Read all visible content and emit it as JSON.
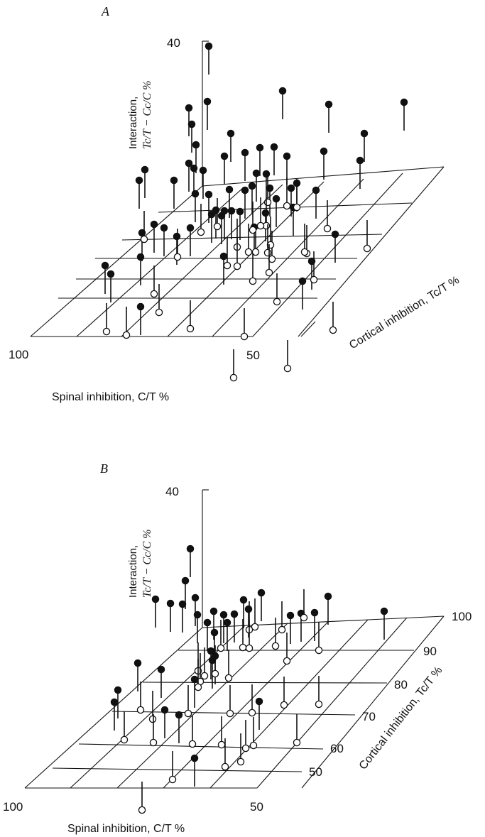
{
  "chart_data": [
    {
      "panel": "A",
      "type": "scatter3d",
      "zlabel_line1": "Interaction,",
      "zlabel_line2": "Tc/T − Cc/C %",
      "xlabel": "Spinal inhibition, C/T %",
      "ylabel": "Cortical inhibition, Tc/T %",
      "z_tick": "40",
      "x_ticks": [
        "100",
        "50"
      ],
      "series": [
        {
          "marker": "filled",
          "points": [
            [
              266,
              152
            ],
            [
              292,
              143
            ],
            [
              294,
              65
            ],
            [
              270,
              175
            ],
            [
              276,
              204
            ],
            [
              273,
              237
            ],
            [
              286,
              240
            ],
            [
              266,
              230
            ],
            [
              325,
              188
            ],
            [
              316,
              220
            ],
            [
              345,
              215
            ],
            [
              366,
              208
            ],
            [
              386,
              207
            ],
            [
              404,
              220
            ],
            [
              398,
              128
            ],
            [
              463,
              147
            ],
            [
              513,
              188
            ],
            [
              569,
              144
            ],
            [
              456,
              213
            ],
            [
              507,
              226
            ],
            [
              204,
              239
            ],
            [
              196,
              254
            ],
            [
              245,
              254
            ],
            [
              294,
              274
            ],
            [
              275,
              273
            ],
            [
              323,
              267
            ],
            [
              345,
              268
            ],
            [
              361,
              244
            ],
            [
              375,
              245
            ],
            [
              380,
              265
            ],
            [
              355,
              262
            ],
            [
              389,
              280
            ],
            [
              410,
              265
            ],
            [
              418,
              258
            ],
            [
              413,
              292
            ],
            [
              445,
              268
            ],
            [
              304,
              296
            ],
            [
              316,
              297
            ],
            [
              326,
              297
            ],
            [
              338,
              298
            ],
            [
              312,
              304
            ],
            [
              298,
              302
            ],
            [
              268,
              321
            ],
            [
              217,
              316
            ],
            [
              231,
              321
            ],
            [
              200,
              328
            ],
            [
              249,
              333
            ],
            [
              358,
              320
            ],
            [
              374,
              300
            ],
            [
              472,
              330
            ],
            [
              315,
              361
            ],
            [
              148,
              374
            ],
            [
              156,
              386
            ],
            [
              198,
              362
            ],
            [
              198,
              432
            ],
            [
              439,
              368
            ],
            [
              426,
              396
            ]
          ]
        },
        {
          "marker": "open",
          "points": [
            [
              377,
              285
            ],
            [
              404,
              290
            ],
            [
              418,
              292
            ],
            [
              375,
              318
            ],
            [
              367,
              318
            ],
            [
              461,
              322
            ],
            [
              517,
              350
            ],
            [
              203,
              337
            ],
            [
              250,
              362
            ],
            [
              283,
              327
            ],
            [
              306,
              319
            ],
            [
              334,
              348
            ],
            [
              350,
              355
            ],
            [
              360,
              355
            ],
            [
              383,
              365
            ],
            [
              356,
              324
            ],
            [
              432,
              357
            ],
            [
              429,
              355
            ],
            [
              381,
              345
            ],
            [
              377,
              356
            ],
            [
              334,
              375
            ],
            [
              320,
              374
            ],
            [
              356,
              396
            ],
            [
              379,
              384
            ],
            [
              442,
              394
            ],
            [
              217,
              414
            ],
            [
              224,
              440
            ],
            [
              268,
              463
            ],
            [
              150,
              467
            ],
            [
              178,
              472
            ],
            [
              344,
              474
            ],
            [
              390,
              425
            ],
            [
              469,
              465
            ],
            [
              329,
              532
            ],
            [
              405,
              519
            ]
          ]
        }
      ]
    },
    {
      "panel": "B",
      "type": "scatter3d",
      "zlabel_line1": "Interaction,",
      "zlabel_line2": "Tc/T − Cc/C %",
      "xlabel": "Spinal inhibition, C/T %",
      "ylabel": "Cortical inhibition, Tc/T %",
      "z_tick": "40",
      "x_ticks": [
        "100",
        "50"
      ],
      "y_ticks": [
        "100",
        "90",
        "80",
        "70",
        "60",
        "50"
      ],
      "series": [
        {
          "marker": "filled",
          "points": [
            [
              268,
              773
            ],
            [
              261,
              818
            ],
            [
              219,
              844
            ],
            [
              240,
              850
            ],
            [
              257,
              851
            ],
            [
              275,
              842
            ],
            [
              278,
              866
            ],
            [
              292,
              877
            ],
            [
              301,
              861
            ],
            [
              315,
              866
            ],
            [
              320,
              877
            ],
            [
              330,
              865
            ],
            [
              343,
              845
            ],
            [
              368,
              835
            ],
            [
              350,
              858
            ],
            [
              409,
              867
            ],
            [
              424,
              864
            ],
            [
              443,
              863
            ],
            [
              462,
              840
            ],
            [
              541,
              861
            ],
            [
              302,
              891
            ],
            [
              297,
              917
            ],
            [
              303,
              924
            ],
            [
              299,
              930
            ],
            [
              194,
              934
            ],
            [
              227,
              943
            ],
            [
              274,
              957
            ],
            [
              166,
              972
            ],
            [
              161,
              989
            ],
            [
              232,
              1000
            ],
            [
              252,
              1007
            ],
            [
              365,
              988
            ],
            [
              274,
              1068
            ]
          ]
        },
        {
          "marker": "open",
          "points": [
            [
              359,
              883
            ],
            [
              351,
              887
            ],
            [
              428,
              870
            ],
            [
              397,
              887
            ],
            [
              311,
              913
            ],
            [
              342,
              912
            ],
            [
              351,
              913
            ],
            [
              279,
              945
            ],
            [
              288,
              952
            ],
            [
              303,
              949
            ],
            [
              282,
              960
            ],
            [
              388,
              910
            ],
            [
              404,
              931
            ],
            [
              449,
              916
            ],
            [
              322,
              955
            ],
            [
              279,
              968
            ],
            [
              198,
              1000
            ],
            [
              215,
              1013
            ],
            [
              265,
              1005
            ],
            [
              324,
              1005
            ],
            [
              355,
              1004
            ],
            [
              400,
              993
            ],
            [
              449,
              992
            ],
            [
              216,
              1046
            ],
            [
              175,
              1042
            ],
            [
              271,
              1048
            ],
            [
              312,
              1049
            ],
            [
              357,
              1050
            ],
            [
              346,
              1054
            ],
            [
              418,
              1046
            ],
            [
              317,
              1080
            ],
            [
              339,
              1073
            ],
            [
              243,
              1098
            ],
            [
              200,
              1141
            ]
          ]
        }
      ]
    }
  ]
}
